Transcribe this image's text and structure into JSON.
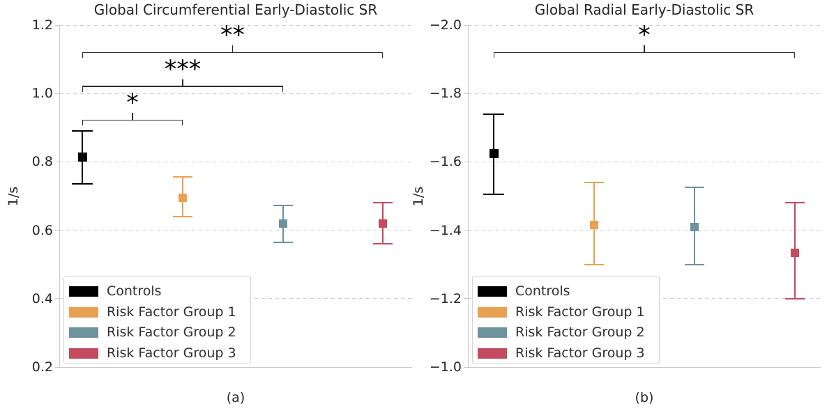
{
  "figure_colors": {
    "background": "#ffffff",
    "grid": "#cdcdcd",
    "spine": "#c9c9c9",
    "text": "#262626",
    "annotation": "#000000"
  },
  "chart_data": [
    {
      "type": "errorbar-points",
      "title": "Global Circumferential Early-Diastolic SR",
      "ylabel": "1/s",
      "xlabel": "(a)",
      "ylim": {
        "top": 1.2,
        "bottom": 0.2
      },
      "ytick_values": [
        1.2,
        1.0,
        0.8,
        0.6,
        0.4,
        0.2
      ],
      "ytick_labels": [
        "1.2",
        "1.0",
        "0.8",
        "0.6",
        "0.4",
        "0.2"
      ],
      "grid": "horizontal-dashed",
      "legend_position": "lower left",
      "series": [
        {
          "name": "Controls",
          "color": "#000000",
          "mean": 0.815,
          "ci_low": 0.735,
          "ci_high": 0.89
        },
        {
          "name": "Risk Factor Group 1",
          "color": "#E8A153",
          "mean": 0.695,
          "ci_low": 0.64,
          "ci_high": 0.755
        },
        {
          "name": "Risk Factor Group 2",
          "color": "#6D939B",
          "mean": 0.62,
          "ci_low": 0.565,
          "ci_high": 0.672
        },
        {
          "name": "Risk Factor Group 3",
          "color": "#C34A5F",
          "mean": 0.62,
          "ci_low": 0.56,
          "ci_high": 0.68
        }
      ],
      "significance": [
        {
          "groups": [
            0,
            1
          ],
          "label": "*",
          "bar_y": 0.924
        },
        {
          "groups": [
            0,
            2
          ],
          "label": "***",
          "bar_y": 1.022
        },
        {
          "groups": [
            0,
            3
          ],
          "label": "**",
          "bar_y": 1.121
        }
      ]
    },
    {
      "type": "errorbar-points",
      "title": "Global Radial Early-Diastolic SR",
      "ylabel": "1/s",
      "xlabel": "(b)",
      "ylim": {
        "top": -2.0,
        "bottom": -1.0
      },
      "ytick_values": [
        -2.0,
        -1.8,
        -1.6,
        -1.4,
        -1.2,
        -1.0
      ],
      "ytick_labels": [
        "−2.0",
        "−1.8",
        "−1.6",
        "−1.4",
        "−1.2",
        "−1.0"
      ],
      "grid": "horizontal-dashed",
      "legend_position": "lower left",
      "series": [
        {
          "name": "Controls",
          "color": "#000000",
          "mean": -1.625,
          "ci_low": -1.505,
          "ci_high": -1.74
        },
        {
          "name": "Risk Factor Group 1",
          "color": "#E8A153",
          "mean": -1.415,
          "ci_low": -1.3,
          "ci_high": -1.54
        },
        {
          "name": "Risk Factor Group 2",
          "color": "#6D939B",
          "mean": -1.41,
          "ci_low": -1.3,
          "ci_high": -1.525
        },
        {
          "name": "Risk Factor Group 3",
          "color": "#C34A5F",
          "mean": -1.335,
          "ci_low": -1.2,
          "ci_high": -1.48
        }
      ],
      "significance": [
        {
          "groups": [
            0,
            3
          ],
          "label": "*",
          "bar_y": -1.921
        }
      ]
    }
  ]
}
